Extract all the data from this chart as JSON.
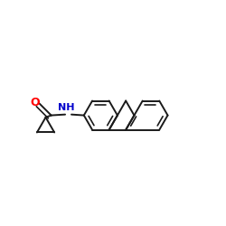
{
  "background_color": "#ffffff",
  "bond_color": "#1a1a1a",
  "o_color": "#ff0000",
  "n_color": "#0000cc",
  "figsize": [
    2.5,
    2.5
  ],
  "dpi": 100,
  "lw": 1.4,
  "dlw": 1.2,
  "bl": 0.072
}
